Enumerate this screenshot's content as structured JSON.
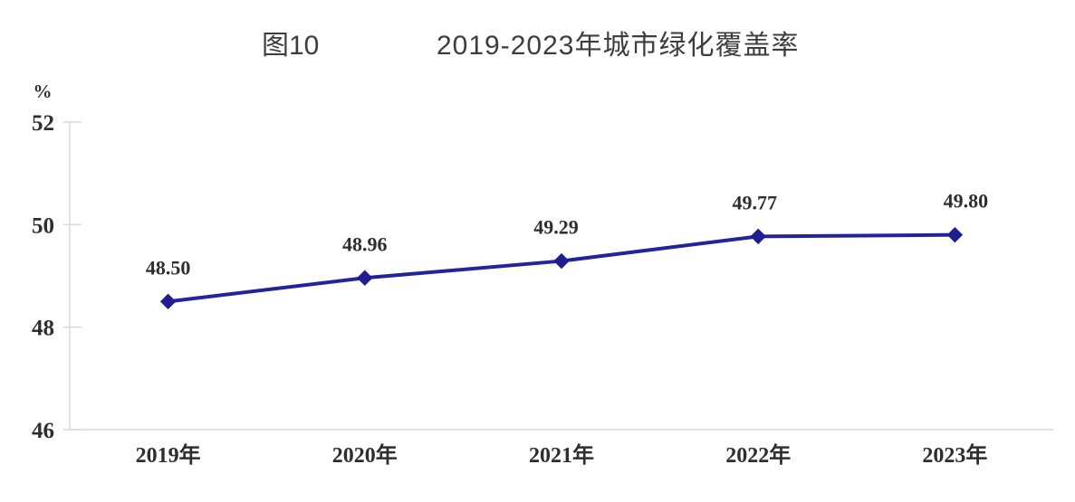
{
  "title": {
    "figure_label": "图10",
    "text": "2019-2023年城市绿化覆盖率"
  },
  "chart_data": {
    "type": "line",
    "title": "2019-2023年城市绿化覆盖率",
    "figure_number": "图10",
    "categories": [
      "2019年",
      "2020年",
      "2021年",
      "2022年",
      "2023年"
    ],
    "series": [
      {
        "name": "城市绿化覆盖率",
        "values": [
          48.5,
          48.96,
          49.29,
          49.77,
          49.8
        ],
        "data_labels": [
          "48.50",
          "48.96",
          "49.29",
          "49.77",
          "49.80"
        ]
      }
    ],
    "xlabel": "",
    "ylabel": "%",
    "ylim": [
      46,
      52
    ],
    "yticks": [
      46,
      48,
      50,
      52
    ],
    "ytick_labels": [
      "46",
      "48",
      "50",
      "52"
    ],
    "grid": false,
    "legend_position": "none",
    "line_color": "#23239b",
    "marker_color": "#1e1e90",
    "marker_shape": "diamond",
    "axis_color": "#d9d9d9",
    "text_color": "#2e2e2e",
    "title_color": "#3d3d3d"
  }
}
